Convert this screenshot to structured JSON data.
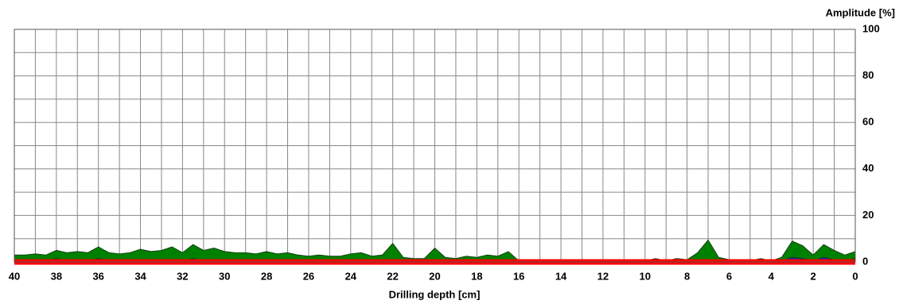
{
  "chart_data": {
    "type": "area",
    "y_label": "Amplitude [%]",
    "x_label": "Drilling depth [cm]",
    "x": [
      40,
      39.5,
      39,
      38.5,
      38,
      37.5,
      37,
      36.5,
      36,
      35.5,
      35,
      34.5,
      34,
      33.5,
      33,
      32.5,
      32,
      31.5,
      31,
      30.5,
      30,
      29.5,
      29,
      28.5,
      28,
      27.5,
      27,
      26.5,
      26,
      25.5,
      25,
      24.5,
      24,
      23.5,
      23,
      22.5,
      22,
      21.5,
      21,
      20.5,
      20,
      19.5,
      19,
      18.5,
      18,
      17.5,
      17,
      16.5,
      16,
      15.5,
      15,
      14.5,
      14,
      13.5,
      13,
      12.5,
      12,
      11.5,
      11,
      10.5,
      10,
      9.5,
      9,
      8.5,
      8,
      7.5,
      7,
      6.5,
      6,
      5.5,
      5,
      4.5,
      4,
      3.5,
      3,
      2.5,
      2,
      1.5,
      1,
      0.5,
      0
    ],
    "series": [
      {
        "color": "#008000",
        "values": [
          3,
          3,
          3.5,
          3,
          5,
          4,
          4.5,
          4,
          6.5,
          4,
          3.5,
          4,
          5.5,
          4.5,
          5,
          6.5,
          4,
          7.5,
          5,
          6,
          4.5,
          4,
          4,
          3.5,
          4.5,
          3.5,
          4,
          3,
          2.5,
          3,
          2.5,
          2.5,
          3.5,
          4,
          2.5,
          3,
          8,
          2,
          1.5,
          1.5,
          6,
          2,
          1.5,
          2.5,
          2,
          3,
          2.5,
          4.5,
          0.5,
          0.5,
          1,
          0.5,
          0.5,
          0.3,
          0.3,
          0.3,
          0.3,
          0.3,
          0.3,
          0.3,
          0.5,
          1.5,
          0.5,
          1.5,
          1,
          4,
          9.5,
          2,
          1,
          1,
          0.5,
          1.5,
          0.5,
          2,
          9,
          7,
          3,
          7.5,
          5,
          3,
          4.5
        ]
      },
      {
        "color": "#1c2aa8",
        "values": [
          0.5,
          0.5,
          1,
          0.5,
          1.5,
          0.5,
          0.5,
          0.5,
          1.5,
          0.5,
          0.5,
          0.5,
          1,
          0.5,
          0.5,
          1,
          0.5,
          1.5,
          0.5,
          1,
          0.5,
          0.5,
          0.5,
          0.5,
          0.5,
          0.5,
          0.5,
          0.5,
          0.5,
          0.5,
          0.5,
          0.5,
          0.5,
          0.5,
          0.5,
          0.5,
          1,
          0.5,
          0.5,
          0.5,
          0.5,
          0.5,
          0.5,
          0.5,
          0.5,
          0.5,
          0.5,
          0.5,
          0.2,
          0.2,
          0.2,
          0.2,
          0.2,
          0.2,
          0.2,
          0.2,
          0.2,
          0.2,
          0.2,
          0.2,
          0.2,
          0.2,
          0.2,
          0.2,
          0.2,
          0.5,
          1,
          0.5,
          0.2,
          0.2,
          0.2,
          0.2,
          0.2,
          0.5,
          2,
          1.5,
          0.5,
          2,
          1,
          0.5,
          1.5
        ]
      },
      {
        "color": "#ff0000",
        "x": [
          40,
          0
        ],
        "values": [
          0,
          0
        ]
      }
    ],
    "xlim": [
      40,
      0
    ],
    "ylim": [
      0,
      100
    ],
    "xticks": [
      40,
      38,
      36,
      34,
      32,
      30,
      28,
      26,
      24,
      22,
      20,
      18,
      16,
      14,
      12,
      10,
      8,
      6,
      4,
      2,
      0
    ],
    "xminorticks": [
      39,
      37,
      35,
      33,
      31,
      29,
      27,
      25,
      23,
      21,
      19,
      17,
      15,
      13,
      11,
      9,
      7,
      5,
      3,
      1
    ],
    "yticks": [
      0,
      20,
      40,
      60,
      80,
      100
    ],
    "yminorticks": [
      10,
      30,
      50,
      70,
      90
    ],
    "grid": true
  }
}
